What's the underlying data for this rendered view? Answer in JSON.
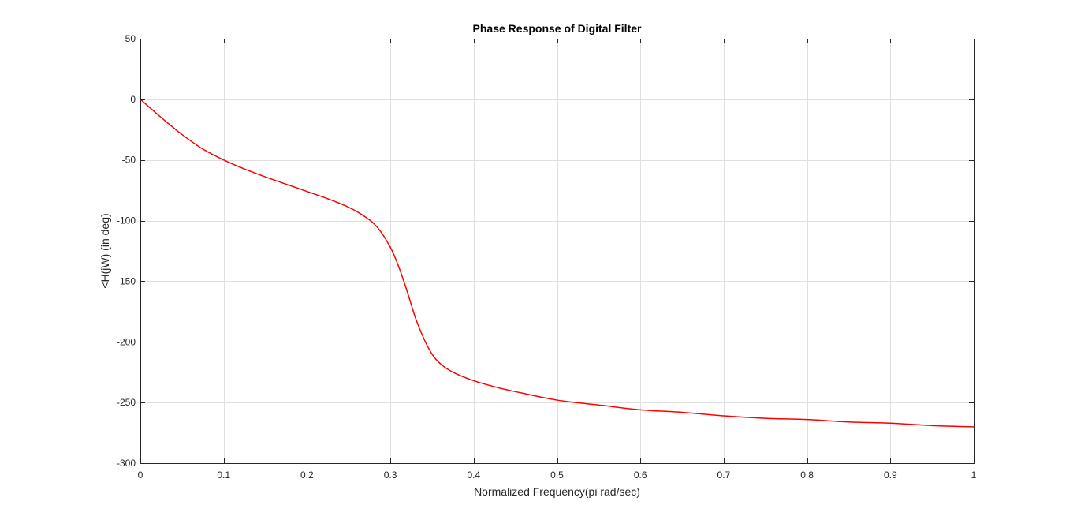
{
  "chart_data": {
    "type": "line",
    "title": "Phase Response of Digital Filter",
    "xlabel": "Normalized Frequency(pi rad/sec)",
    "ylabel": "<H(jW) (in deg)",
    "xlim": [
      0,
      1
    ],
    "ylim": [
      -300,
      50
    ],
    "xticks": [
      0,
      0.1,
      0.2,
      0.3,
      0.4,
      0.5,
      0.6,
      0.7,
      0.8,
      0.9,
      1
    ],
    "xtick_labels": [
      "0",
      "0.1",
      "0.2",
      "0.3",
      "0.4",
      "0.5",
      "0.6",
      "0.7",
      "0.8",
      "0.9",
      "1"
    ],
    "yticks": [
      50,
      0,
      -50,
      -100,
      -150,
      -200,
      -250,
      -300
    ],
    "ytick_labels": [
      "50",
      "0",
      "-50",
      "-100",
      "-150",
      "-200",
      "-250",
      "-300"
    ],
    "grid": true,
    "series": [
      {
        "color": "#ff0000",
        "x": [
          0,
          0.025,
          0.05,
          0.075,
          0.1,
          0.125,
          0.15,
          0.175,
          0.2,
          0.225,
          0.25,
          0.27,
          0.285,
          0.3,
          0.31,
          0.32,
          0.33,
          0.34,
          0.35,
          0.36,
          0.375,
          0.4,
          0.425,
          0.45,
          0.5,
          0.55,
          0.6,
          0.65,
          0.7,
          0.75,
          0.8,
          0.85,
          0.9,
          0.95,
          1.0
        ],
        "y": [
          0,
          -15,
          -29,
          -41,
          -50,
          -57.5,
          -64,
          -70,
          -76,
          -82,
          -89,
          -97,
          -106,
          -122,
          -138,
          -158,
          -180,
          -197,
          -210,
          -218,
          -225,
          -232,
          -237,
          -241,
          -248,
          -252,
          -256,
          -258,
          -261,
          -263,
          -264,
          -266,
          -267,
          -269,
          -270
        ]
      }
    ]
  }
}
